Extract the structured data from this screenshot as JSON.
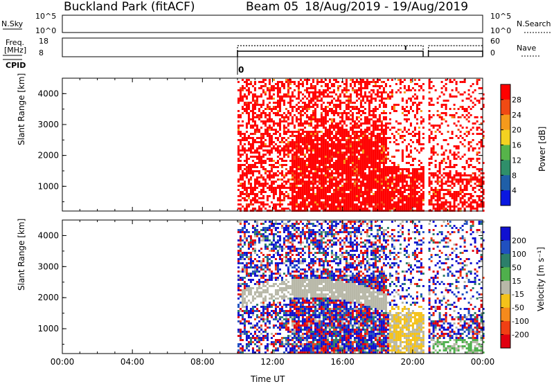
{
  "header": {
    "station": "Buckland Park (fitACF)",
    "beam": "Beam 05",
    "date_range": "18/Aug/2019 - 19/Aug/2019"
  },
  "top_panels": {
    "nsky_label": "N.Sky",
    "nsky_ticks": [
      "10^5",
      "10^0"
    ],
    "nsearch_label": "N.Search",
    "nsearch_ticks": [
      "10^5",
      "10^0"
    ],
    "freq_label_line1": "Freq.",
    "freq_label_line2": "[MHz]",
    "freq_ticks": [
      "18",
      "8"
    ],
    "nave_label": "Nave",
    "nave_ticks": [
      "60",
      "0"
    ],
    "cpid_label": "CPID",
    "cpid_value": "0"
  },
  "chart_data": [
    {
      "type": "heatmap",
      "name": "power",
      "ylabel": "Slant Range [km]",
      "xlabel": "",
      "ylim": [
        200,
        4500
      ],
      "xlim": [
        0,
        24
      ],
      "x_ticks": [
        "00:00",
        "04:00",
        "08:00",
        "12:00",
        "16:00",
        "20:00",
        "00:00"
      ],
      "y_ticks": [
        1000,
        2000,
        3000,
        4000
      ],
      "data_segments": [
        [
          10.0,
          20.6
        ],
        [
          20.9,
          24.0
        ]
      ],
      "colorbar": {
        "label": "Power [dB]",
        "ticks": [
          4,
          8,
          12,
          16,
          20,
          24,
          28
        ],
        "colors": [
          "#0a18e0",
          "#1f5fa8",
          "#2f8f6a",
          "#56b44a",
          "#f4d221",
          "#f59a1c",
          "#f04a14",
          "#ff0000"
        ]
      }
    },
    {
      "type": "heatmap",
      "name": "velocity",
      "ylabel": "Slant Range [km]",
      "xlabel": "Time UT",
      "ylim": [
        200,
        4500
      ],
      "xlim": [
        0,
        24
      ],
      "x_ticks": [
        "00:00",
        "04:00",
        "08:00",
        "12:00",
        "16:00",
        "20:00",
        "00:00"
      ],
      "y_ticks": [
        1000,
        2000,
        3000,
        4000
      ],
      "data_segments": [
        [
          10.0,
          20.6
        ],
        [
          20.9,
          24.0
        ]
      ],
      "colorbar": {
        "label": "Velocity [m s⁻¹]",
        "ticks": [
          "200",
          "100",
          "50",
          "15",
          "-15",
          "-50",
          "-100",
          "-200"
        ],
        "colors": [
          "#1010d0",
          "#2050c0",
          "#2c7f6a",
          "#4fb04c",
          "#b8b8a8",
          "#f4c21a",
          "#f58a1c",
          "#f04014",
          "#e00010"
        ]
      }
    }
  ]
}
